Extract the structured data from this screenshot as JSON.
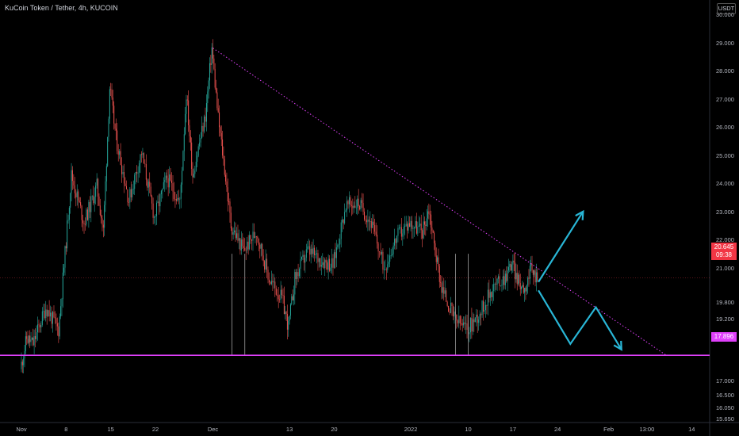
{
  "header": {
    "title": "KuCoin Token / Tether, 4h, KUCOIN"
  },
  "price_axis": {
    "currency": "USDT",
    "last_price": "20.645",
    "countdown": "09:38",
    "support_label": "17.896"
  },
  "colors": {
    "background": "#000000",
    "up_candle": "#26a69a",
    "down_candle": "#ef5350",
    "trendline": "#e040fb",
    "support": "#e040fb",
    "arrows": "#29b6d6",
    "last_price_badge": "#f23645"
  },
  "chart_data": {
    "type": "candlestick",
    "title": "KuCoin Token / Tether, 4h, KUCOIN",
    "ylim": [
      15.3,
      30.2
    ],
    "y_ticks": [
      "30.000",
      "29.000",
      "28.000",
      "27.000",
      "26.000",
      "25.000",
      "24.000",
      "23.000",
      "22.000",
      "21.000",
      "19.800",
      "19.200",
      "18.600",
      "17.000",
      "16.500",
      "16.050",
      "15.650"
    ],
    "x_ticks": [
      "Nov",
      "8",
      "15",
      "22",
      "Dec",
      "13",
      "20",
      "2022",
      "10",
      "17",
      "24",
      "Feb",
      "13:00",
      "14"
    ],
    "grid": false,
    "price_path": [
      [
        "2021-11-01",
        17.4
      ],
      [
        "2021-11-02",
        18.5
      ],
      [
        "2021-11-03",
        18.3
      ],
      [
        "2021-11-05",
        19.6
      ],
      [
        "2021-11-07",
        18.8
      ],
      [
        "2021-11-08",
        21.5
      ],
      [
        "2021-11-09",
        24.3
      ],
      [
        "2021-11-11",
        22.6
      ],
      [
        "2021-11-13",
        23.9
      ],
      [
        "2021-11-14",
        22.3
      ],
      [
        "2021-11-15",
        27.4
      ],
      [
        "2021-11-16",
        25.6
      ],
      [
        "2021-11-18",
        23.4
      ],
      [
        "2021-11-20",
        25.1
      ],
      [
        "2021-11-22",
        22.8
      ],
      [
        "2021-11-24",
        24.2
      ],
      [
        "2021-11-26",
        23.3
      ],
      [
        "2021-11-27",
        27.2
      ],
      [
        "2021-11-28",
        24.3
      ],
      [
        "2021-11-30",
        26.4
      ],
      [
        "2021-12-01",
        28.8
      ],
      [
        "2021-12-02",
        26.3
      ],
      [
        "2021-12-03",
        24.5
      ],
      [
        "2021-12-04",
        22.5
      ],
      [
        "2021-12-06",
        21.6
      ],
      [
        "2021-12-08",
        22.3
      ],
      [
        "2021-12-10",
        20.6
      ],
      [
        "2021-12-12",
        19.9
      ],
      [
        "2021-12-13",
        18.9
      ],
      [
        "2021-12-14",
        20.6
      ],
      [
        "2021-12-16",
        21.6
      ],
      [
        "2021-12-18",
        21.3
      ],
      [
        "2021-12-20",
        21.1
      ],
      [
        "2021-12-22",
        23.2
      ],
      [
        "2021-12-24",
        23.3
      ],
      [
        "2021-12-26",
        22.6
      ],
      [
        "2021-12-28",
        21.0
      ],
      [
        "2021-12-30",
        22.1
      ],
      [
        "2022-01-01",
        22.6
      ],
      [
        "2022-01-03",
        22.3
      ],
      [
        "2022-01-04",
        23.1
      ],
      [
        "2022-01-05",
        21.6
      ],
      [
        "2022-01-06",
        20.3
      ],
      [
        "2022-01-08",
        19.2
      ],
      [
        "2022-01-10",
        18.8
      ],
      [
        "2022-01-12",
        19.4
      ],
      [
        "2022-01-14",
        20.3
      ],
      [
        "2022-01-16",
        20.7
      ],
      [
        "2022-01-17",
        21.2
      ],
      [
        "2022-01-18",
        20.5
      ],
      [
        "2022-01-19",
        20.3
      ],
      [
        "2022-01-20",
        20.9
      ],
      [
        "2022-01-21",
        20.645
      ]
    ],
    "support_level": 17.896,
    "annotations": [
      {
        "type": "trendline",
        "style": "dotted",
        "points": [
          [
            "2021-12-01",
            28.8
          ],
          [
            "2022-02-10",
            17.9
          ]
        ]
      },
      {
        "type": "horizontal_line",
        "value": 17.896
      },
      {
        "type": "arrow",
        "points": [
          [
            "2022-01-21",
            20.5
          ],
          [
            "2022-01-28",
            23.0
          ]
        ]
      },
      {
        "type": "arrow_zigzag",
        "points": [
          [
            "2022-01-21",
            20.2
          ],
          [
            "2022-01-26",
            18.3
          ],
          [
            "2022-01-30",
            19.6
          ],
          [
            "2022-02-03",
            18.1
          ]
        ]
      }
    ]
  }
}
